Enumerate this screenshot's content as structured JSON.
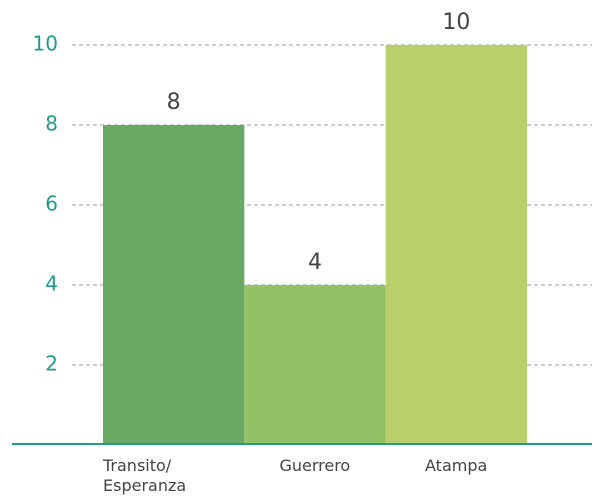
{
  "chart_data": {
    "type": "bar",
    "categories": [
      "Transito/ Esperanza",
      "Guerrero",
      "Atampa"
    ],
    "values": [
      8,
      4,
      10
    ],
    "colors": [
      "#68a964",
      "#91c164",
      "#b9cf6c"
    ],
    "ylim": [
      0,
      10
    ],
    "yticks": [
      2,
      4,
      6,
      8,
      10
    ],
    "grid": true
  }
}
